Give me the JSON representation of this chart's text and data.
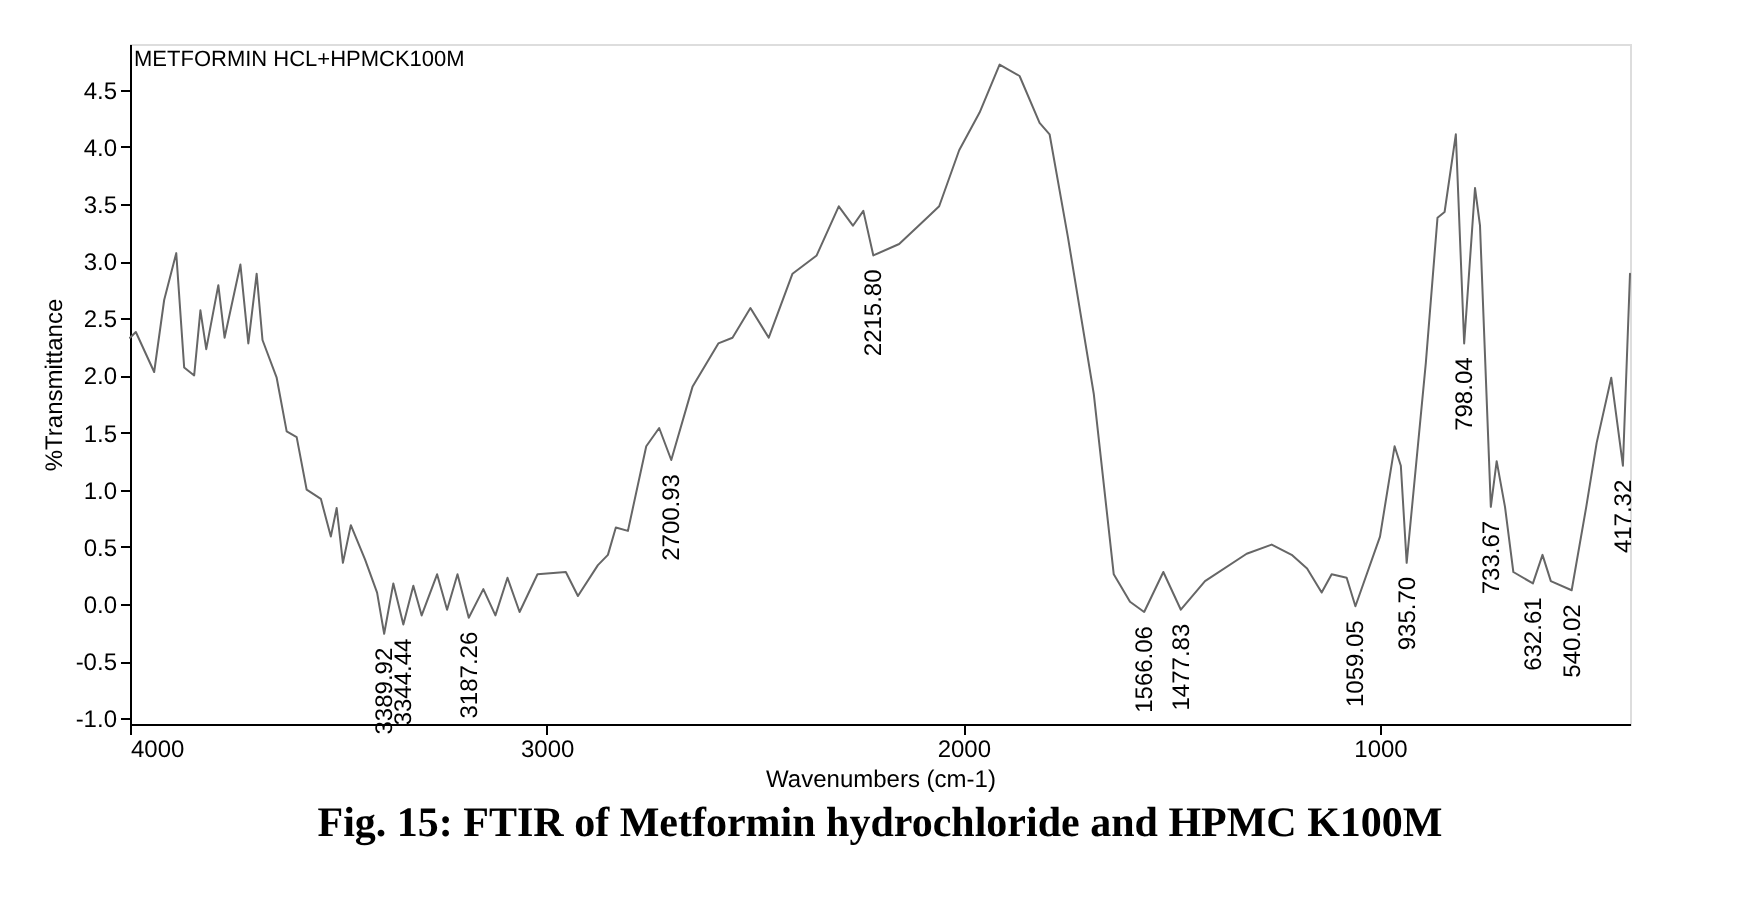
{
  "chart_data": {
    "type": "line",
    "title": "Fig. 15: FTIR of Metformin hydrochloride and HPMC K100M",
    "xlabel": "Wavenumbers (cm-1)",
    "ylabel": "%Transmittance",
    "x": [
      4000,
      3986,
      3942,
      3918,
      3889,
      3870,
      3846,
      3831,
      3817,
      3788,
      3773,
      3735,
      3716,
      3696,
      3682,
      3648,
      3624,
      3600,
      3576,
      3542,
      3518,
      3504,
      3489,
      3470,
      3436,
      3407,
      3390,
      3368,
      3344,
      3320,
      3300,
      3263,
      3239,
      3214,
      3187,
      3152,
      3123,
      3094,
      3065,
      3022,
      2954,
      2925,
      2877,
      2853,
      2834,
      2805,
      2761,
      2730,
      2701,
      2650,
      2588,
      2554,
      2511,
      2467,
      2410,
      2352,
      2299,
      2265,
      2240,
      2216,
      2154,
      2087,
      2058,
      2010,
      1961,
      1913,
      1865,
      1817,
      1793,
      1749,
      1687,
      1639,
      1600,
      1566,
      1520,
      1478,
      1420,
      1320,
      1260,
      1212,
      1175,
      1140,
      1116,
      1080,
      1059,
      1000,
      965,
      950,
      936,
      890,
      862,
      845,
      818,
      798,
      772,
      760,
      734,
      720,
      700,
      680,
      633,
      610,
      590,
      540,
      505,
      480,
      445,
      417,
      400
    ],
    "series": [
      {
        "color": "#666666",
        "values": [
          2.33,
          2.38,
          2.03,
          2.66,
          3.07,
          2.07,
          2.0,
          2.57,
          2.23,
          2.79,
          2.33,
          2.97,
          2.28,
          2.89,
          2.31,
          1.98,
          1.51,
          1.46,
          1.0,
          0.92,
          0.59,
          0.84,
          0.36,
          0.69,
          0.39,
          0.1,
          -0.26,
          0.18,
          -0.18,
          0.16,
          -0.1,
          0.26,
          -0.05,
          0.26,
          -0.12,
          0.13,
          -0.1,
          0.23,
          -0.07,
          0.26,
          0.28,
          0.07,
          0.34,
          0.43,
          0.67,
          0.64,
          1.38,
          1.54,
          1.26,
          1.9,
          2.28,
          2.33,
          2.59,
          2.33,
          2.89,
          3.05,
          3.48,
          3.31,
          3.44,
          3.05,
          3.15,
          3.38,
          3.48,
          3.97,
          4.3,
          4.72,
          4.62,
          4.21,
          4.11,
          3.21,
          1.84,
          0.26,
          0.02,
          -0.07,
          0.28,
          -0.05,
          0.2,
          0.44,
          0.52,
          0.43,
          0.31,
          0.1,
          0.26,
          0.23,
          -0.02,
          0.59,
          1.38,
          1.21,
          0.36,
          2.11,
          3.38,
          3.43,
          4.11,
          2.28,
          3.64,
          3.31,
          0.85,
          1.25,
          0.85,
          0.28,
          0.18,
          0.43,
          0.2,
          0.12,
          0.85,
          1.41,
          1.98,
          1.21,
          2.89
        ]
      }
    ],
    "xlim": [
      4000,
      400
    ],
    "xticks": [
      4000,
      3000,
      2000,
      1000
    ],
    "ylim": [
      -1.05,
      4.9
    ],
    "yticks": [
      {
        "value": -1,
        "label": "-1.0"
      },
      {
        "value": -0.5,
        "label": "-0.5"
      },
      {
        "value": 0,
        "label": "0.0"
      },
      {
        "value": 0.5,
        "label": "0.5"
      },
      {
        "value": 1,
        "label": "1.0"
      },
      {
        "value": 1.5,
        "label": "1.5"
      },
      {
        "value": 2,
        "label": "2.0"
      },
      {
        "value": 2.5,
        "label": "2.5"
      },
      {
        "value": 3,
        "label": "3.0"
      },
      {
        "value": 3.5,
        "label": "3.5"
      },
      {
        "value": 4,
        "label": "4.0"
      },
      {
        "value": 4.5,
        "label": "4.5"
      }
    ],
    "grid": false,
    "annotations": [
      "METFORMIN HCL+HPMCK100M",
      {
        "text": "3389.92",
        "x": 3390,
        "y": -0.26
      },
      {
        "text": "3344.44",
        "x": 3344,
        "y": -0.18
      },
      {
        "text": "3187.26",
        "x": 3187,
        "y": -0.12
      },
      {
        "text": "2700.93",
        "x": 2701,
        "y": 1.26
      },
      {
        "text": "2215.80",
        "x": 2216,
        "y": 3.05
      },
      {
        "text": "1566.06",
        "x": 1566,
        "y": -0.07
      },
      {
        "text": "1477.83",
        "x": 1478,
        "y": -0.05
      },
      {
        "text": "1059.05",
        "x": 1059,
        "y": -0.02
      },
      {
        "text": "935.70",
        "x": 936,
        "y": 0.36
      },
      {
        "text": "798.04",
        "x": 798,
        "y": 2.28
      },
      {
        "text": "733.67",
        "x": 734,
        "y": 0.85
      },
      {
        "text": "632.61",
        "x": 633,
        "y": 0.18
      },
      {
        "text": "540.02",
        "x": 540,
        "y": 0.12
      },
      {
        "text": "417.32",
        "x": 417,
        "y": 1.21
      }
    ]
  }
}
